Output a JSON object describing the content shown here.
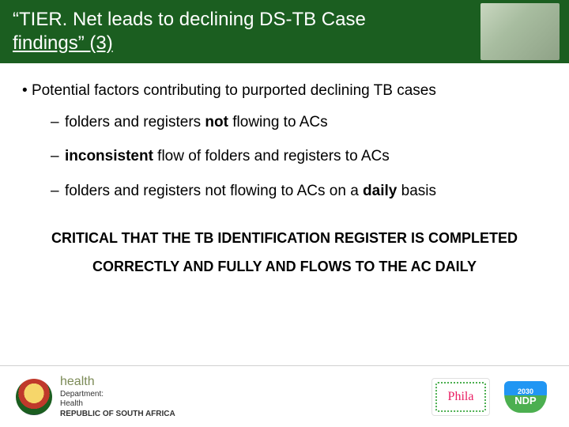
{
  "header": {
    "title_line1": "“TIER. Net leads to declining DS-TB Case",
    "title_line2": "findings” (3)",
    "bg_color": "#1b5e20",
    "text_color": "#ffffff"
  },
  "body": {
    "main_bullet": "Potential factors contributing to purported declining TB cases",
    "sub_bullets": [
      {
        "pre": "folders and registers ",
        "bold": "not",
        "post": " flowing to ACs"
      },
      {
        "bold": "inconsistent",
        "post": " flow of folders and registers to ACs"
      },
      {
        "pre": "folders and registers not flowing to ACs on a ",
        "bold": "daily",
        "post": " basis"
      }
    ],
    "critical": "CRITICAL THAT THE TB IDENTIFICATION REGISTER IS COMPLETED CORRECTLY AND FULLY AND FLOWS TO THE AC DAILY"
  },
  "footer": {
    "dept_title": "health",
    "dept_line1": "Department:",
    "dept_line2": "Health",
    "dept_line3": "REPUBLIC OF SOUTH AFRICA",
    "phila_text": "Phila",
    "ndp_year": "2030",
    "ndp_name": "NDP"
  }
}
